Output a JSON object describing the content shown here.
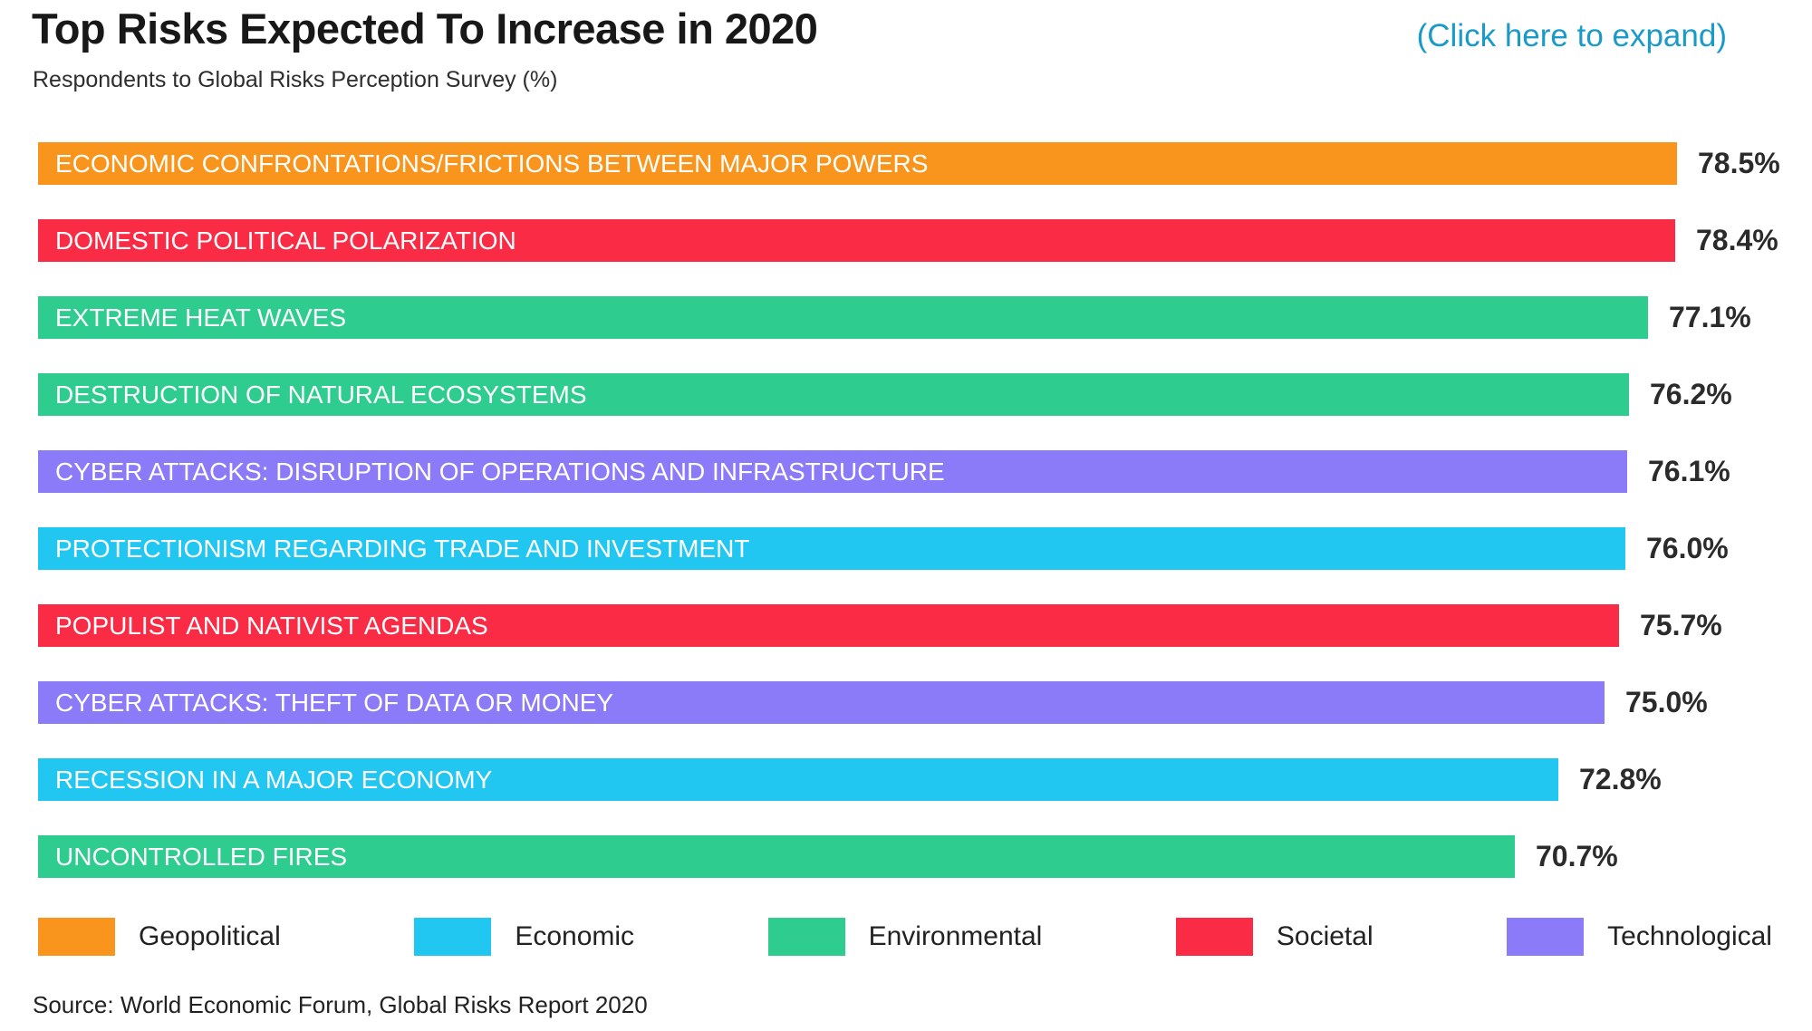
{
  "header": {
    "title": "Top Risks Expected To Increase in 2020",
    "subtitle": "Respondents to Global Risks Perception Survey (%)",
    "expand_link": "(Click here to expand)",
    "link_color": "#1a9ac8"
  },
  "chart_data": {
    "type": "bar",
    "orientation": "horizontal",
    "title": "Top Risks Expected To Increase in 2020",
    "subtitle": "Respondents to Global Risks Perception Survey (%)",
    "unit": "%",
    "xlim": [
      0,
      85
    ],
    "grid": false,
    "legend_position": "bottom",
    "categories": [
      "ECONOMIC CONFRONTATIONS/FRICTIONS BETWEEN MAJOR POWERS",
      "DOMESTIC POLITICAL POLARIZATION",
      "EXTREME HEAT WAVES",
      "DESTRUCTION OF NATURAL ECOSYSTEMS",
      "CYBER ATTACKS: DISRUPTION OF OPERATIONS AND INFRASTRUCTURE",
      "PROTECTIONISM REGARDING TRADE AND INVESTMENT",
      "POPULIST AND NATIVIST AGENDAS",
      "CYBER ATTACKS: THEFT OF DATA OR MONEY",
      "RECESSION IN A MAJOR ECONOMY",
      "UNCONTROLLED FIRES"
    ],
    "values": [
      78.5,
      78.4,
      77.1,
      76.2,
      76.1,
      76.0,
      75.7,
      75.0,
      72.8,
      70.7
    ],
    "bars": [
      {
        "label": "ECONOMIC CONFRONTATIONS/FRICTIONS BETWEEN MAJOR POWERS",
        "value": 78.5,
        "value_label": "78.5%",
        "category": "Geopolitical"
      },
      {
        "label": "DOMESTIC POLITICAL POLARIZATION",
        "value": 78.4,
        "value_label": "78.4%",
        "category": "Societal"
      },
      {
        "label": "EXTREME HEAT WAVES",
        "value": 77.1,
        "value_label": "77.1%",
        "category": "Environmental"
      },
      {
        "label": "DESTRUCTION OF NATURAL ECOSYSTEMS",
        "value": 76.2,
        "value_label": "76.2%",
        "category": "Environmental"
      },
      {
        "label": "CYBER ATTACKS: DISRUPTION OF OPERATIONS AND INFRASTRUCTURE",
        "value": 76.1,
        "value_label": "76.1%",
        "category": "Technological"
      },
      {
        "label": "PROTECTIONISM REGARDING TRADE AND INVESTMENT",
        "value": 76.0,
        "value_label": "76.0%",
        "category": "Economic"
      },
      {
        "label": "POPULIST AND NATIVIST AGENDAS",
        "value": 75.7,
        "value_label": "75.7%",
        "category": "Societal"
      },
      {
        "label": "CYBER ATTACKS: THEFT OF DATA OR MONEY",
        "value": 75.0,
        "value_label": "75.0%",
        "category": "Technological"
      },
      {
        "label": "RECESSION IN A MAJOR ECONOMY",
        "value": 72.8,
        "value_label": "72.8%",
        "category": "Economic"
      },
      {
        "label": "UNCONTROLLED FIRES",
        "value": 70.7,
        "value_label": "70.7%",
        "category": "Environmental"
      }
    ]
  },
  "legend": [
    {
      "label": "Geopolitical",
      "color": "#F9951D"
    },
    {
      "label": "Economic",
      "color": "#21C6F1"
    },
    {
      "label": "Environmental",
      "color": "#2ECC8E"
    },
    {
      "label": "Societal",
      "color": "#FA2B45"
    },
    {
      "label": "Technological",
      "color": "#8B7BF9"
    }
  ],
  "source": "Source: World Economic Forum, Global Risks Report 2020"
}
